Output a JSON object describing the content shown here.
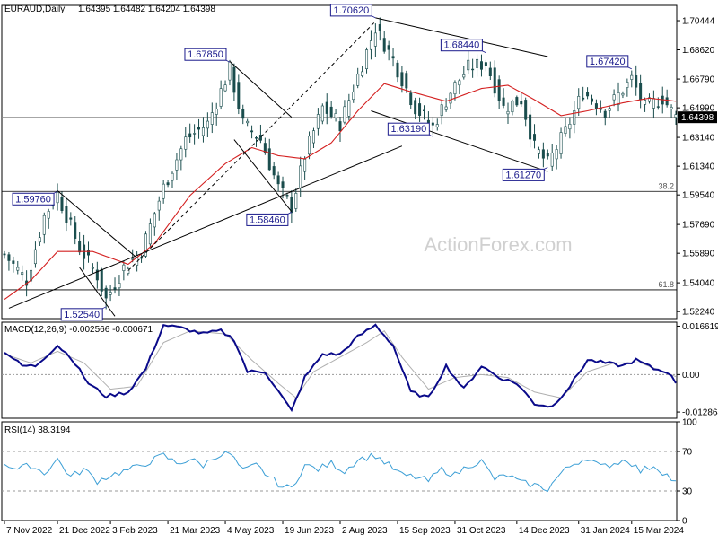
{
  "chart_data": {
    "type": "candlestick",
    "header": {
      "symbol": "EURAUD,Daily",
      "ohlc": "1.64395 1.64482 1.64204 1.64398"
    },
    "watermark": "ActionForex.com",
    "price_panel": {
      "ylim": [
        1.518,
        1.714
      ],
      "y_ticks": [
        "1.70444",
        "1.68620",
        "1.66790",
        "1.64990",
        "1.63140",
        "1.61340",
        "1.59540",
        "1.57690",
        "1.55890",
        "1.54040",
        "1.52240"
      ],
      "y_tick_values": [
        1.70444,
        1.6862,
        1.6679,
        1.6499,
        1.6314,
        1.6134,
        1.5954,
        1.5769,
        1.5589,
        1.5404,
        1.5224
      ],
      "current_price": "1.64398",
      "current_price_value": 1.64398,
      "fib_levels": [
        {
          "label": "38.2",
          "value": 1.5976
        },
        {
          "label": "61.8",
          "value": 1.536
        }
      ],
      "annotations": [
        {
          "text": "1.70620",
          "x_index": 84,
          "value": 1.7062
        },
        {
          "text": "1.68440",
          "x_index": 109,
          "value": 1.6844
        },
        {
          "text": "1.67850",
          "x_index": 51,
          "value": 1.6785
        },
        {
          "text": "1.67420",
          "x_index": 142,
          "value": 1.6742
        },
        {
          "text": "1.63190",
          "x_index": 97,
          "value": 1.6319
        },
        {
          "text": "1.61270",
          "x_index": 123,
          "value": 1.6127
        },
        {
          "text": "1.59760",
          "x_index": 12,
          "value": 1.5976
        },
        {
          "text": "1.58460",
          "x_index": 65,
          "value": 1.5846
        },
        {
          "text": "1.52540",
          "x_index": 23,
          "value": 1.5254
        }
      ],
      "anchors": [
        {
          "x": 0,
          "y": 1.558
        },
        {
          "x": 5,
          "y": 1.542
        },
        {
          "x": 9,
          "y": 1.582
        },
        {
          "x": 12,
          "y": 1.596
        },
        {
          "x": 17,
          "y": 1.562
        },
        {
          "x": 21,
          "y": 1.545
        },
        {
          "x": 23,
          "y": 1.53
        },
        {
          "x": 27,
          "y": 1.55
        },
        {
          "x": 31,
          "y": 1.56
        },
        {
          "x": 36,
          "y": 1.6
        },
        {
          "x": 41,
          "y": 1.63
        },
        {
          "x": 46,
          "y": 1.64
        },
        {
          "x": 51,
          "y": 1.674
        },
        {
          "x": 54,
          "y": 1.64
        },
        {
          "x": 58,
          "y": 1.63
        },
        {
          "x": 62,
          "y": 1.6
        },
        {
          "x": 65,
          "y": 1.588
        },
        {
          "x": 68,
          "y": 1.62
        },
        {
          "x": 72,
          "y": 1.65
        },
        {
          "x": 76,
          "y": 1.64
        },
        {
          "x": 80,
          "y": 1.67
        },
        {
          "x": 84,
          "y": 1.7
        },
        {
          "x": 88,
          "y": 1.68
        },
        {
          "x": 93,
          "y": 1.65
        },
        {
          "x": 97,
          "y": 1.638
        },
        {
          "x": 101,
          "y": 1.66
        },
        {
          "x": 105,
          "y": 1.675
        },
        {
          "x": 109,
          "y": 1.678
        },
        {
          "x": 113,
          "y": 1.65
        },
        {
          "x": 117,
          "y": 1.655
        },
        {
          "x": 120,
          "y": 1.625
        },
        {
          "x": 123,
          "y": 1.615
        },
        {
          "x": 127,
          "y": 1.635
        },
        {
          "x": 131,
          "y": 1.66
        },
        {
          "x": 136,
          "y": 1.648
        },
        {
          "x": 142,
          "y": 1.668
        },
        {
          "x": 145,
          "y": 1.65
        },
        {
          "x": 149,
          "y": 1.656
        },
        {
          "x": 152,
          "y": 1.644
        }
      ],
      "moving_average": [
        {
          "x": 0,
          "y": 1.53
        },
        {
          "x": 6,
          "y": 1.542
        },
        {
          "x": 12,
          "y": 1.56
        },
        {
          "x": 20,
          "y": 1.56
        },
        {
          "x": 28,
          "y": 1.552
        },
        {
          "x": 34,
          "y": 1.565
        },
        {
          "x": 42,
          "y": 1.595
        },
        {
          "x": 50,
          "y": 1.615
        },
        {
          "x": 56,
          "y": 1.625
        },
        {
          "x": 62,
          "y": 1.62
        },
        {
          "x": 68,
          "y": 1.618
        },
        {
          "x": 74,
          "y": 1.628
        },
        {
          "x": 80,
          "y": 1.648
        },
        {
          "x": 86,
          "y": 1.665
        },
        {
          "x": 92,
          "y": 1.66
        },
        {
          "x": 100,
          "y": 1.654
        },
        {
          "x": 108,
          "y": 1.662
        },
        {
          "x": 114,
          "y": 1.664
        },
        {
          "x": 120,
          "y": 1.655
        },
        {
          "x": 126,
          "y": 1.645
        },
        {
          "x": 132,
          "y": 1.648
        },
        {
          "x": 140,
          "y": 1.653
        },
        {
          "x": 146,
          "y": 1.656
        },
        {
          "x": 152,
          "y": 1.654
        }
      ],
      "trend_lines": [
        {
          "x1": 1,
          "y1": 1.5245,
          "x2": 90,
          "y2": 1.626,
          "style": "solid"
        },
        {
          "x1": 12,
          "y1": 1.598,
          "x2": 30,
          "y2": 1.556,
          "style": "solid"
        },
        {
          "x1": 17,
          "y1": 1.55,
          "x2": 25,
          "y2": 1.5195,
          "style": "solid"
        },
        {
          "x1": 51,
          "y1": 1.679,
          "x2": 65,
          "y2": 1.644,
          "style": "solid"
        },
        {
          "x1": 52,
          "y1": 1.63,
          "x2": 65,
          "y2": 1.585,
          "style": "solid"
        },
        {
          "x1": 28,
          "y1": 1.548,
          "x2": 84,
          "y2": 1.704,
          "style": "dashed"
        },
        {
          "x1": 84,
          "y1": 1.7062,
          "x2": 123,
          "y2": 1.682,
          "style": "solid"
        },
        {
          "x1": 83,
          "y1": 1.648,
          "x2": 123,
          "y2": 1.61,
          "style": "solid"
        }
      ]
    },
    "macd_panel": {
      "label": "MACD(12,26,9) -0.002566 -0.000671",
      "ylim": [
        -0.015,
        0.018
      ],
      "y_ticks": [
        "0.016619",
        "0.00",
        "-0.012864"
      ],
      "y_tick_values": [
        0.016619,
        0.0,
        -0.012864
      ],
      "macd": [
        {
          "x": 0,
          "y": 0.008
        },
        {
          "x": 4,
          "y": 0.003
        },
        {
          "x": 7,
          "y": 0.003
        },
        {
          "x": 12,
          "y": 0.01
        },
        {
          "x": 15,
          "y": 0.006
        },
        {
          "x": 19,
          "y": -0.003
        },
        {
          "x": 23,
          "y": -0.0075
        },
        {
          "x": 28,
          "y": -0.006
        },
        {
          "x": 32,
          "y": 0.002
        },
        {
          "x": 36,
          "y": 0.017
        },
        {
          "x": 40,
          "y": 0.016
        },
        {
          "x": 45,
          "y": 0.014
        },
        {
          "x": 49,
          "y": 0.015
        },
        {
          "x": 52,
          "y": 0.012
        },
        {
          "x": 55,
          "y": 0.001
        },
        {
          "x": 59,
          "y": 0.001
        },
        {
          "x": 63,
          "y": -0.008
        },
        {
          "x": 65,
          "y": -0.0125
        },
        {
          "x": 68,
          "y": -0.001
        },
        {
          "x": 72,
          "y": 0.007
        },
        {
          "x": 76,
          "y": 0.007
        },
        {
          "x": 80,
          "y": 0.013
        },
        {
          "x": 84,
          "y": 0.017
        },
        {
          "x": 88,
          "y": 0.01
        },
        {
          "x": 92,
          "y": -0.006
        },
        {
          "x": 96,
          "y": -0.008
        },
        {
          "x": 100,
          "y": 0.003
        },
        {
          "x": 104,
          "y": -0.005
        },
        {
          "x": 108,
          "y": 0.003
        },
        {
          "x": 112,
          "y": -0.001
        },
        {
          "x": 116,
          "y": -0.003
        },
        {
          "x": 120,
          "y": -0.01
        },
        {
          "x": 124,
          "y": -0.011
        },
        {
          "x": 128,
          "y": -0.004
        },
        {
          "x": 132,
          "y": 0.005
        },
        {
          "x": 136,
          "y": 0.004
        },
        {
          "x": 140,
          "y": 0.003
        },
        {
          "x": 143,
          "y": 0.005
        },
        {
          "x": 147,
          "y": 0.002
        },
        {
          "x": 150,
          "y": 0.001
        },
        {
          "x": 152,
          "y": -0.0026
        }
      ],
      "signal": [
        {
          "x": 0,
          "y": 0.007
        },
        {
          "x": 6,
          "y": 0.004
        },
        {
          "x": 12,
          "y": 0.008
        },
        {
          "x": 18,
          "y": 0.004
        },
        {
          "x": 24,
          "y": -0.005
        },
        {
          "x": 30,
          "y": -0.004
        },
        {
          "x": 36,
          "y": 0.011
        },
        {
          "x": 42,
          "y": 0.015
        },
        {
          "x": 50,
          "y": 0.014
        },
        {
          "x": 56,
          "y": 0.005
        },
        {
          "x": 62,
          "y": -0.003
        },
        {
          "x": 66,
          "y": -0.008
        },
        {
          "x": 70,
          "y": 0.001
        },
        {
          "x": 76,
          "y": 0.006
        },
        {
          "x": 82,
          "y": 0.011
        },
        {
          "x": 86,
          "y": 0.015
        },
        {
          "x": 90,
          "y": 0.006
        },
        {
          "x": 96,
          "y": -0.005
        },
        {
          "x": 102,
          "y": -0.001
        },
        {
          "x": 108,
          "y": 0.0
        },
        {
          "x": 114,
          "y": -0.001
        },
        {
          "x": 120,
          "y": -0.006
        },
        {
          "x": 126,
          "y": -0.008
        },
        {
          "x": 132,
          "y": 0.001
        },
        {
          "x": 138,
          "y": 0.004
        },
        {
          "x": 144,
          "y": 0.004
        },
        {
          "x": 152,
          "y": -0.0007
        }
      ]
    },
    "rsi_panel": {
      "label": "RSI(14) 38.3194",
      "ylim": [
        0,
        100
      ],
      "y_ticks": [
        "100",
        "70",
        "30",
        "0"
      ],
      "y_tick_values": [
        100,
        70,
        30,
        0
      ],
      "levels": [
        70,
        30
      ],
      "rsi": [
        {
          "x": 0,
          "y": 58
        },
        {
          "x": 3,
          "y": 52
        },
        {
          "x": 6,
          "y": 56
        },
        {
          "x": 9,
          "y": 48
        },
        {
          "x": 12,
          "y": 62
        },
        {
          "x": 15,
          "y": 44
        },
        {
          "x": 18,
          "y": 52
        },
        {
          "x": 21,
          "y": 40
        },
        {
          "x": 24,
          "y": 46
        },
        {
          "x": 27,
          "y": 50
        },
        {
          "x": 30,
          "y": 54
        },
        {
          "x": 33,
          "y": 60
        },
        {
          "x": 36,
          "y": 66
        },
        {
          "x": 39,
          "y": 58
        },
        {
          "x": 42,
          "y": 62
        },
        {
          "x": 45,
          "y": 56
        },
        {
          "x": 48,
          "y": 66
        },
        {
          "x": 51,
          "y": 68
        },
        {
          "x": 54,
          "y": 50
        },
        {
          "x": 57,
          "y": 56
        },
        {
          "x": 60,
          "y": 44
        },
        {
          "x": 63,
          "y": 34
        },
        {
          "x": 65,
          "y": 33
        },
        {
          "x": 68,
          "y": 56
        },
        {
          "x": 71,
          "y": 52
        },
        {
          "x": 74,
          "y": 58
        },
        {
          "x": 77,
          "y": 50
        },
        {
          "x": 80,
          "y": 62
        },
        {
          "x": 84,
          "y": 66
        },
        {
          "x": 87,
          "y": 56
        },
        {
          "x": 90,
          "y": 46
        },
        {
          "x": 93,
          "y": 44
        },
        {
          "x": 96,
          "y": 40
        },
        {
          "x": 99,
          "y": 52
        },
        {
          "x": 102,
          "y": 46
        },
        {
          "x": 105,
          "y": 56
        },
        {
          "x": 108,
          "y": 60
        },
        {
          "x": 111,
          "y": 42
        },
        {
          "x": 114,
          "y": 46
        },
        {
          "x": 117,
          "y": 38
        },
        {
          "x": 120,
          "y": 36
        },
        {
          "x": 123,
          "y": 32
        },
        {
          "x": 126,
          "y": 48
        },
        {
          "x": 129,
          "y": 58
        },
        {
          "x": 132,
          "y": 64
        },
        {
          "x": 135,
          "y": 54
        },
        {
          "x": 138,
          "y": 58
        },
        {
          "x": 141,
          "y": 62
        },
        {
          "x": 144,
          "y": 50
        },
        {
          "x": 147,
          "y": 56
        },
        {
          "x": 150,
          "y": 46
        },
        {
          "x": 152,
          "y": 38
        }
      ]
    },
    "x_axis": {
      "tick_labels": [
        "7 Nov 2022",
        "21 Dec 2022",
        "3 Feb 2023",
        "21 Mar 2023",
        "4 May 2023",
        "19 Jun 2023",
        "2 Aug 2023",
        "15 Sep 2023",
        "31 Oct 2023",
        "14 Dec 2023",
        "31 Jan 2024",
        "15 Mar 2024"
      ],
      "tick_indices": [
        0,
        12,
        24,
        37,
        50,
        63,
        76,
        89,
        102,
        116,
        130,
        142
      ],
      "bar_count": 153
    },
    "colors": {
      "candles": "#1a4d4d",
      "moving_average": "#d42020",
      "macd": "#0a0a8a",
      "signal": "#b0b0b0",
      "rsi": "#3c9fd6",
      "label_border": "#1a1a8c",
      "watermark": "#d0d0d0",
      "grid": "#999999"
    }
  }
}
